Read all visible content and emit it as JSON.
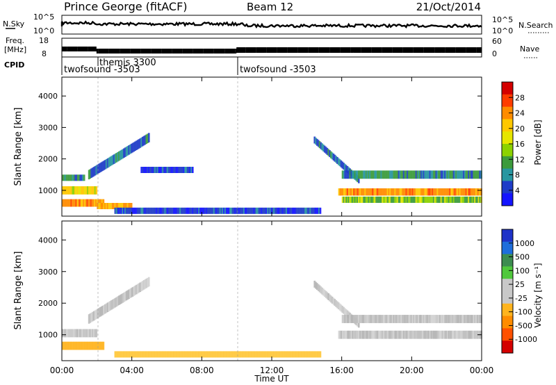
{
  "header": {
    "title": "Prince George (fitACF)",
    "beam": "Beam 12",
    "date": "21/Oct/2014"
  },
  "panels": {
    "noise": {
      "left_label": "N.Sky",
      "right_label": "N.Search",
      "left_ticks": [
        "10^5",
        "10^0"
      ],
      "right_ticks": [
        "10^5",
        "10^0"
      ]
    },
    "freq": {
      "left_label_1": "Freq.",
      "left_label_2": "[MHz]",
      "right_label": "Nave",
      "left_ticks": [
        "18",
        "8"
      ],
      "right_ticks": [
        "60",
        "0"
      ]
    },
    "cpid": {
      "label": "CPID",
      "segments": [
        {
          "name": "twofsound -3503",
          "start_hour": 0,
          "end_hour": 2
        },
        {
          "name": "themis 3300",
          "start_hour": 2,
          "end_hour": 10
        },
        {
          "name": "twofsound -3503",
          "start_hour": 10,
          "end_hour": 24
        }
      ]
    }
  },
  "power_colorbar": {
    "label": "Power [dB]",
    "ticks": [
      "28",
      "24",
      "20",
      "16",
      "12",
      "8",
      "4"
    ],
    "colors": [
      "#d40000",
      "#ff3c00",
      "#ff8c00",
      "#ffc800",
      "#e6e600",
      "#8cd200",
      "#3c9b3c",
      "#2896a0",
      "#1e3cc8",
      "#1414ff"
    ]
  },
  "velocity_colorbar": {
    "label": "Velocity [m s⁻¹]",
    "ticks": [
      "1000",
      "500",
      "100",
      "25",
      "-25",
      "-100",
      "-500",
      "-1000"
    ],
    "colors": [
      "#1e32c8",
      "#1e6edc",
      "#3c8c50",
      "#50c83c",
      "#c8c8c8",
      "#c8c8c8",
      "#ffb41e",
      "#ff8c00",
      "#ff5000",
      "#d40000"
    ]
  },
  "axes": {
    "ylabel": "Slant Range [km]",
    "xlabel": "Time UT",
    "y_ticks": [
      "1000",
      "2000",
      "3000",
      "4000"
    ],
    "x_ticks": [
      "00:00",
      "04:00",
      "08:00",
      "12:00",
      "16:00",
      "20:00",
      "00:00"
    ]
  },
  "chart_data": [
    {
      "type": "heatmap",
      "title": "Prince George (fitACF) Beam 12 21/Oct/2014",
      "variable": "Power",
      "unit": "dB",
      "xlabel": "Time UT",
      "ylabel": "Slant Range [km]",
      "xlim": [
        0,
        24
      ],
      "ylim": [
        180,
        4600
      ],
      "color_levels": [
        4,
        8,
        12,
        16,
        20,
        24,
        28
      ],
      "x_unit": "hours UT",
      "bands": [
        {
          "start_h": 0.0,
          "end_h": 2.4,
          "center_km": 600,
          "width_km": 240,
          "level": 24
        },
        {
          "start_h": 0.0,
          "end_h": 2.0,
          "center_km": 1000,
          "width_km": 260,
          "level": 18
        },
        {
          "start_h": 0.0,
          "end_h": 1.3,
          "center_km": 1400,
          "width_km": 200,
          "level": 10
        },
        {
          "start_h": 1.5,
          "end_h": 5.0,
          "center_km": 1500,
          "end_center_km": 2700,
          "width_km": 300,
          "level": 8
        },
        {
          "start_h": 2.0,
          "end_h": 4.0,
          "center_km": 500,
          "width_km": 200,
          "level": 22
        },
        {
          "start_h": 3.0,
          "end_h": 14.8,
          "center_km": 350,
          "width_km": 200,
          "level": 6
        },
        {
          "start_h": 4.5,
          "end_h": 7.5,
          "center_km": 1650,
          "width_km": 200,
          "level": 6
        },
        {
          "start_h": 14.4,
          "end_h": 17.0,
          "center_km": 2600,
          "end_center_km": 1300,
          "width_km": 220,
          "level": 8
        },
        {
          "start_h": 16.0,
          "end_h": 24.0,
          "center_km": 1500,
          "width_km": 260,
          "level": 10
        },
        {
          "start_h": 15.8,
          "end_h": 24.0,
          "center_km": 950,
          "width_km": 230,
          "level": 24
        },
        {
          "start_h": 16.0,
          "end_h": 24.0,
          "center_km": 700,
          "width_km": 200,
          "level": 14
        }
      ]
    },
    {
      "type": "heatmap",
      "variable": "Velocity",
      "unit": "m s^-1",
      "xlabel": "Time UT",
      "ylabel": "Slant Range [km]",
      "xlim": [
        0,
        24
      ],
      "ylim": [
        180,
        4600
      ],
      "color_levels": [
        -1000,
        -500,
        -100,
        -25,
        25,
        100,
        500,
        1000
      ],
      "x_unit": "hours UT",
      "bands": [
        {
          "start_h": 0.0,
          "end_h": 2.4,
          "center_km": 650,
          "width_km": 260,
          "level": -200
        },
        {
          "start_h": 0.0,
          "end_h": 2.0,
          "center_km": 1050,
          "width_km": 260,
          "level": 0
        },
        {
          "start_h": 1.5,
          "end_h": 5.0,
          "center_km": 1500,
          "end_center_km": 2700,
          "width_km": 300,
          "level": 0
        },
        {
          "start_h": 3.0,
          "end_h": 14.8,
          "center_km": 380,
          "width_km": 200,
          "level": -50
        },
        {
          "start_h": 14.4,
          "end_h": 17.0,
          "center_km": 2600,
          "end_center_km": 1300,
          "width_km": 220,
          "level": 0
        },
        {
          "start_h": 16.0,
          "end_h": 24.0,
          "center_km": 1500,
          "width_km": 260,
          "level": 0
        },
        {
          "start_h": 15.8,
          "end_h": 24.0,
          "center_km": 1000,
          "width_km": 260,
          "level": 0
        }
      ]
    }
  ]
}
